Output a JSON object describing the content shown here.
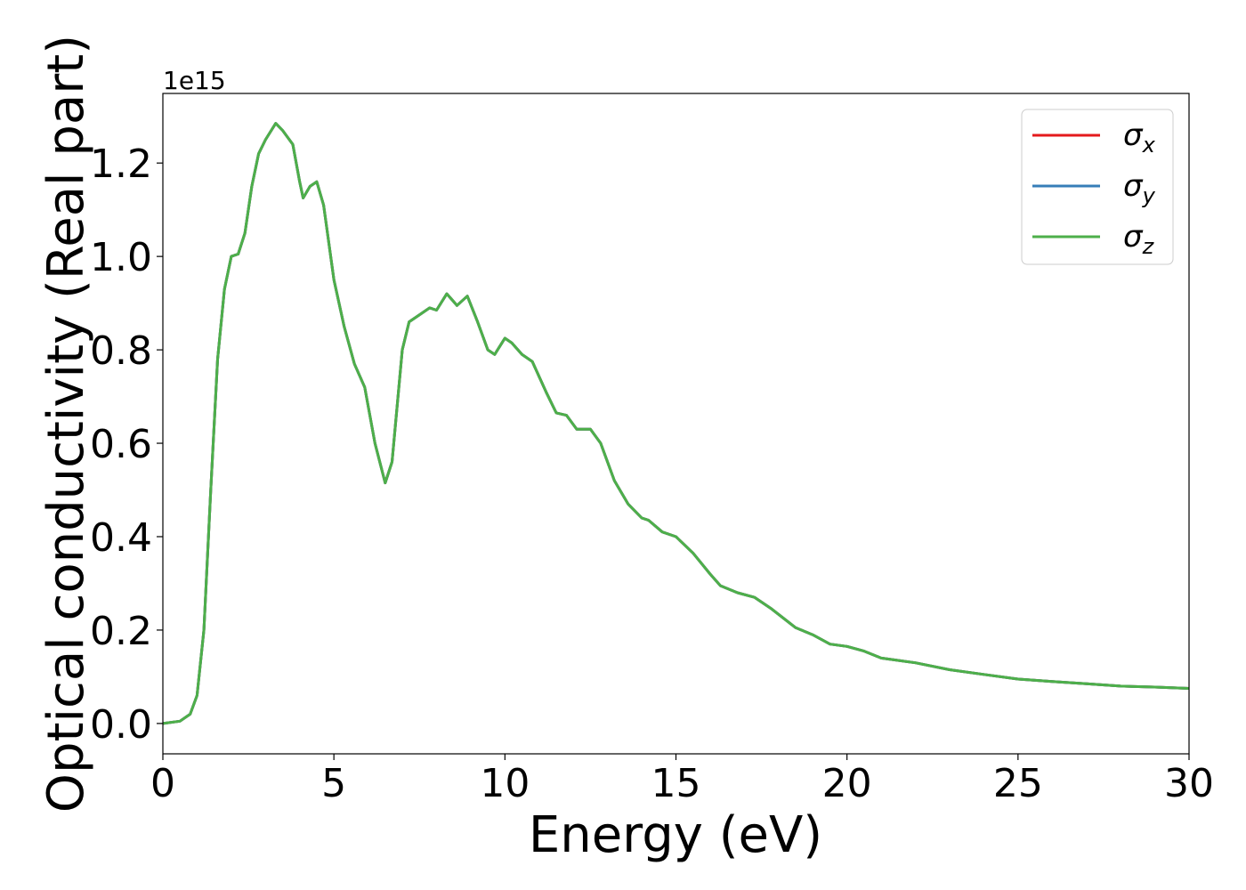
{
  "chart_data": {
    "type": "line",
    "ylabel": "Optical conductivity (Real part)",
    "xlabel": "Energy (eV)",
    "y_offset_label": "1e15",
    "x": [
      0,
      0.5,
      0.8,
      1.0,
      1.2,
      1.4,
      1.6,
      1.8,
      2.0,
      2.2,
      2.4,
      2.6,
      2.8,
      3.0,
      3.3,
      3.5,
      3.8,
      4.0,
      4.1,
      4.3,
      4.5,
      4.7,
      5.0,
      5.3,
      5.6,
      5.9,
      6.2,
      6.5,
      6.7,
      7.0,
      7.2,
      7.5,
      7.8,
      8.0,
      8.3,
      8.6,
      8.9,
      9.2,
      9.5,
      9.7,
      10.0,
      10.2,
      10.5,
      10.8,
      11.2,
      11.5,
      11.8,
      12.1,
      12.5,
      12.8,
      13.2,
      13.6,
      14.0,
      14.2,
      14.6,
      15.0,
      15.5,
      16.0,
      16.3,
      16.8,
      17.3,
      17.8,
      18.5,
      19.0,
      19.5,
      20.0,
      20.5,
      21.0,
      22.0,
      23.0,
      24.0,
      25.0,
      26.0,
      27.0,
      28.0,
      29.0,
      30.0
    ],
    "series": [
      {
        "name": "σx",
        "color": "#e41a1c",
        "values": [
          0,
          0.005,
          0.02,
          0.06,
          0.2,
          0.5,
          0.78,
          0.93,
          1.0,
          1.005,
          1.05,
          1.15,
          1.22,
          1.25,
          1.285,
          1.27,
          1.24,
          1.16,
          1.125,
          1.15,
          1.16,
          1.11,
          0.95,
          0.85,
          0.77,
          0.72,
          0.6,
          0.515,
          0.56,
          0.8,
          0.86,
          0.875,
          0.89,
          0.885,
          0.92,
          0.895,
          0.915,
          0.86,
          0.8,
          0.79,
          0.825,
          0.815,
          0.79,
          0.775,
          0.71,
          0.665,
          0.66,
          0.63,
          0.63,
          0.6,
          0.52,
          0.47,
          0.44,
          0.435,
          0.41,
          0.4,
          0.365,
          0.32,
          0.295,
          0.28,
          0.27,
          0.245,
          0.205,
          0.19,
          0.17,
          0.165,
          0.155,
          0.14,
          0.13,
          0.115,
          0.105,
          0.095,
          0.09,
          0.085,
          0.08,
          0.078,
          0.075
        ]
      },
      {
        "name": "σy",
        "color": "#377eb8",
        "values": [
          0,
          0.005,
          0.02,
          0.06,
          0.2,
          0.5,
          0.78,
          0.93,
          1.0,
          1.005,
          1.05,
          1.15,
          1.22,
          1.25,
          1.285,
          1.27,
          1.24,
          1.16,
          1.125,
          1.15,
          1.16,
          1.11,
          0.95,
          0.85,
          0.77,
          0.72,
          0.6,
          0.515,
          0.56,
          0.8,
          0.86,
          0.875,
          0.89,
          0.885,
          0.92,
          0.895,
          0.915,
          0.86,
          0.8,
          0.79,
          0.825,
          0.815,
          0.79,
          0.775,
          0.71,
          0.665,
          0.66,
          0.63,
          0.63,
          0.6,
          0.52,
          0.47,
          0.44,
          0.435,
          0.41,
          0.4,
          0.365,
          0.32,
          0.295,
          0.28,
          0.27,
          0.245,
          0.205,
          0.19,
          0.17,
          0.165,
          0.155,
          0.14,
          0.13,
          0.115,
          0.105,
          0.095,
          0.09,
          0.085,
          0.08,
          0.078,
          0.075
        ]
      },
      {
        "name": "σz",
        "color": "#4daf4a",
        "values": [
          0,
          0.005,
          0.02,
          0.06,
          0.2,
          0.5,
          0.78,
          0.93,
          1.0,
          1.005,
          1.05,
          1.15,
          1.22,
          1.25,
          1.285,
          1.27,
          1.24,
          1.16,
          1.125,
          1.15,
          1.16,
          1.11,
          0.95,
          0.85,
          0.77,
          0.72,
          0.6,
          0.515,
          0.56,
          0.8,
          0.86,
          0.875,
          0.89,
          0.885,
          0.92,
          0.895,
          0.915,
          0.86,
          0.8,
          0.79,
          0.825,
          0.815,
          0.79,
          0.775,
          0.71,
          0.665,
          0.66,
          0.63,
          0.63,
          0.6,
          0.52,
          0.47,
          0.44,
          0.435,
          0.41,
          0.4,
          0.365,
          0.32,
          0.295,
          0.28,
          0.27,
          0.245,
          0.205,
          0.19,
          0.17,
          0.165,
          0.155,
          0.14,
          0.13,
          0.115,
          0.105,
          0.095,
          0.09,
          0.085,
          0.08,
          0.078,
          0.075
        ]
      }
    ],
    "xlim": [
      0,
      30
    ],
    "xticks": [
      0,
      5,
      10,
      15,
      20,
      25,
      30
    ],
    "ylim": [
      -0.065,
      1.349
    ],
    "yticks": [
      {
        "value": 0,
        "label": "0.0"
      },
      {
        "value": 0.2,
        "label": "0.2"
      },
      {
        "value": 0.4,
        "label": "0.4"
      },
      {
        "value": 0.6,
        "label": "0.6"
      },
      {
        "value": 0.8,
        "label": "0.8"
      },
      {
        "value": 1.0,
        "label": "1.0"
      },
      {
        "value": 1.2,
        "label": "1.2"
      }
    ],
    "grid": false,
    "legend": "upper right"
  }
}
